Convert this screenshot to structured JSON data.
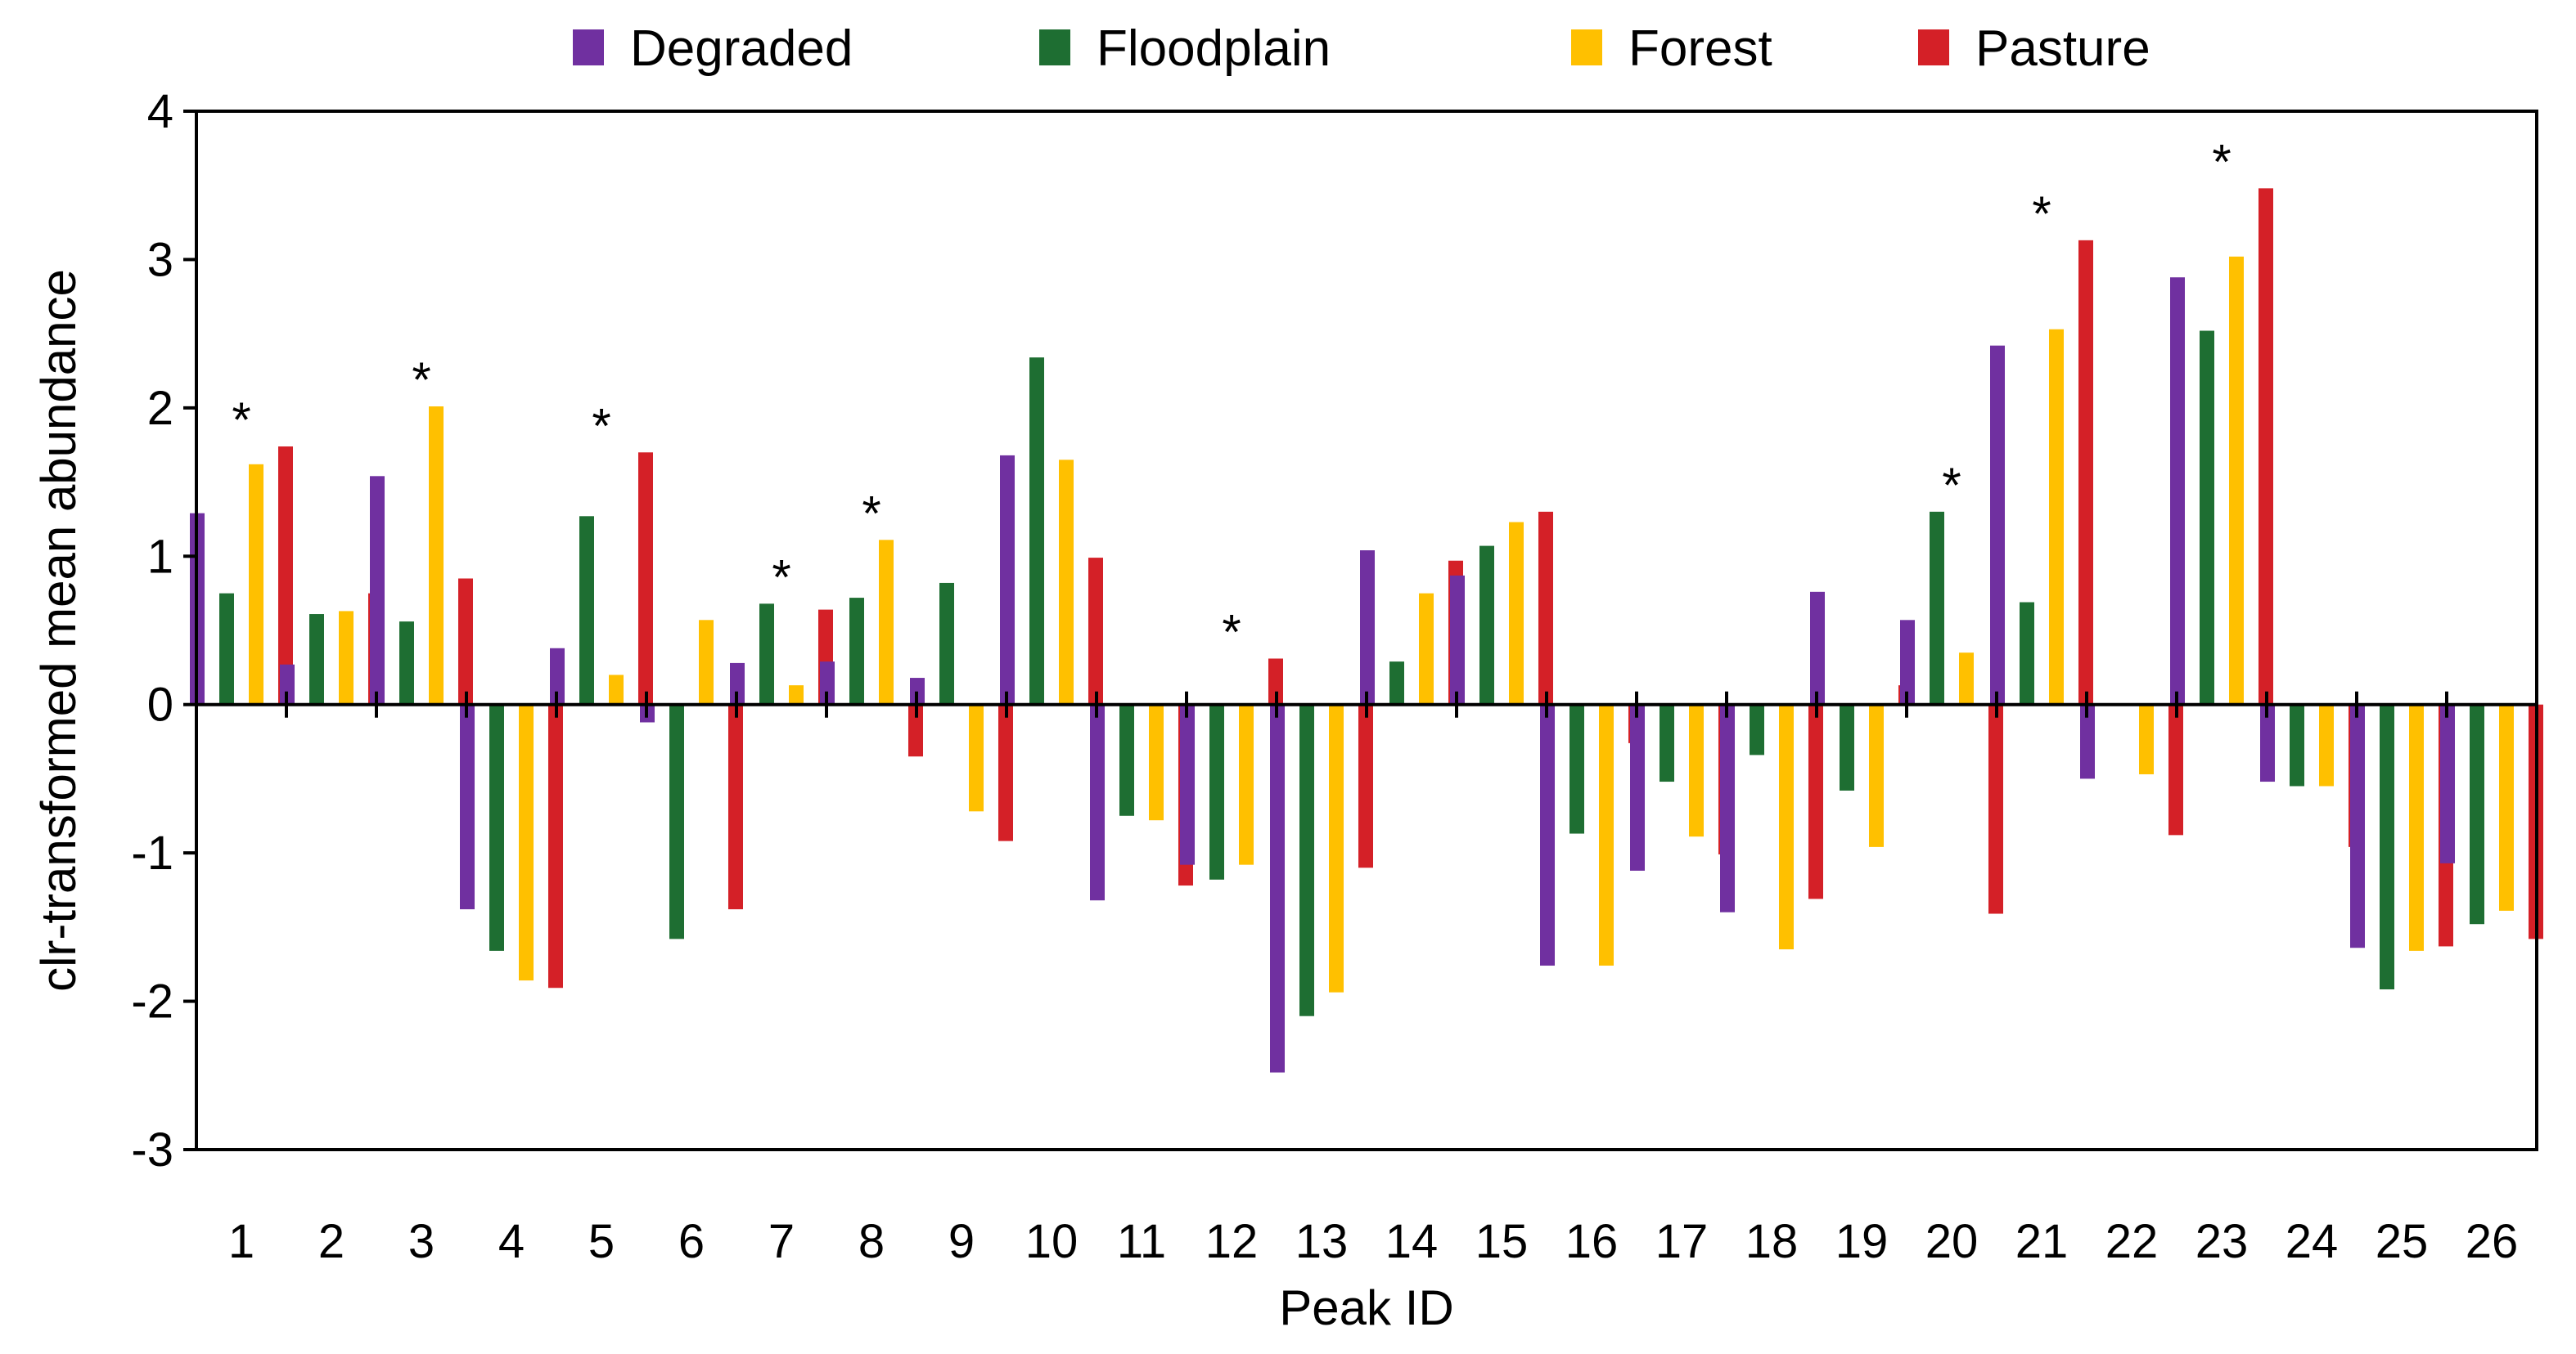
{
  "chart_data": {
    "type": "bar",
    "title": "",
    "xlabel": "Peak ID",
    "ylabel": "clr-transformed mean abundance",
    "ylim": [
      -3,
      4
    ],
    "yticks": [
      -3,
      -2,
      -1,
      0,
      1,
      2,
      3,
      4
    ],
    "grid": false,
    "legend_position": "top",
    "categories": [
      "1",
      "2",
      "3",
      "4",
      "5",
      "6",
      "7",
      "8",
      "9",
      "10",
      "11",
      "12",
      "13",
      "14",
      "15",
      "16",
      "17",
      "18",
      "19",
      "20",
      "21",
      "22",
      "23",
      "24",
      "25",
      "26"
    ],
    "series": [
      {
        "name": "Degraded",
        "color": "#7030A0",
        "values": [
          1.29,
          0.27,
          1.54,
          -1.38,
          0.38,
          -0.12,
          0.28,
          0.29,
          0.18,
          1.68,
          -1.32,
          -1.08,
          -2.48,
          1.04,
          0.87,
          -1.76,
          -1.12,
          -1.4,
          0.76,
          0.57,
          2.42,
          -0.5,
          2.88,
          -0.52,
          -1.64,
          -1.07
        ]
      },
      {
        "name": "Floodplain",
        "color": "#1E6E32",
        "values": [
          0.75,
          0.61,
          0.56,
          -1.66,
          1.27,
          -1.58,
          0.68,
          0.72,
          0.82,
          2.34,
          -0.75,
          -1.18,
          -2.1,
          0.29,
          1.07,
          -0.87,
          -0.52,
          -0.34,
          -0.58,
          1.3,
          0.69,
          0.0,
          2.52,
          -0.55,
          -1.92,
          -1.48
        ]
      },
      {
        "name": "Forest",
        "color": "#FFC000",
        "values": [
          1.62,
          0.63,
          2.01,
          -1.86,
          0.2,
          0.57,
          0.13,
          1.11,
          -0.72,
          1.65,
          -0.78,
          -1.08,
          -1.94,
          0.75,
          1.23,
          -1.76,
          -0.89,
          -1.65,
          -0.96,
          0.35,
          2.53,
          -0.47,
          3.02,
          -0.55,
          -1.66,
          -1.39
        ]
      },
      {
        "name": "Pasture",
        "color": "#D42027",
        "values": [
          1.74,
          0.75,
          0.85,
          -1.91,
          1.7,
          -1.38,
          0.64,
          -0.35,
          -0.92,
          0.99,
          -1.22,
          0.31,
          -1.1,
          0.97,
          1.3,
          -0.26,
          -1.01,
          -1.31,
          0.13,
          -1.41,
          3.13,
          -0.88,
          3.48,
          -0.96,
          -1.63,
          -1.58
        ]
      }
    ],
    "significance_markers": [
      {
        "category": "1",
        "label": "*",
        "value": 1.74
      },
      {
        "category": "3",
        "label": "*",
        "value": 2.01
      },
      {
        "category": "5",
        "label": "*",
        "value": 1.7
      },
      {
        "category": "7",
        "label": "*",
        "value": 0.68
      },
      {
        "category": "8",
        "label": "*",
        "value": 1.11
      },
      {
        "category": "12",
        "label": "*",
        "value": 0.31
      },
      {
        "category": "20",
        "label": "*",
        "value": 1.3
      },
      {
        "category": "21",
        "label": "*",
        "value": 3.13
      },
      {
        "category": "23",
        "label": "*",
        "value": 3.48
      }
    ]
  }
}
